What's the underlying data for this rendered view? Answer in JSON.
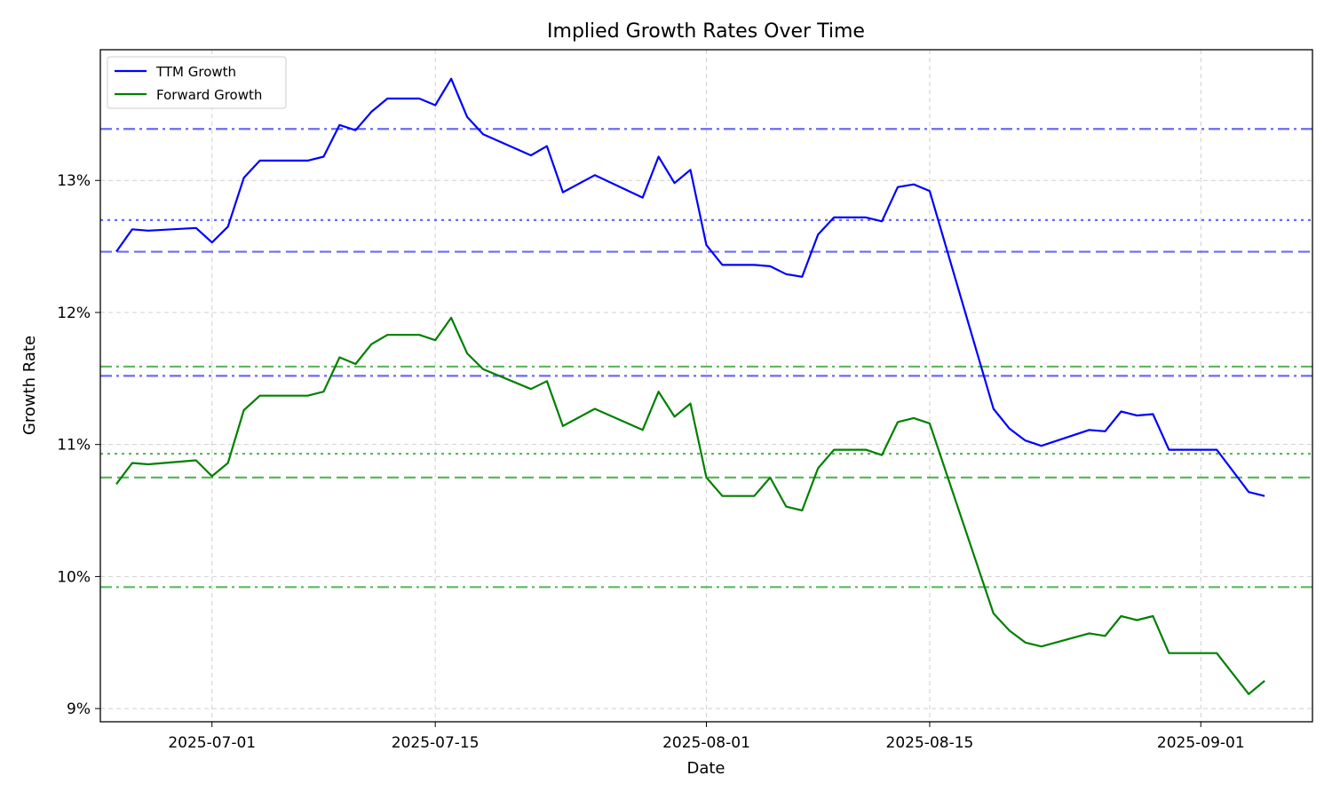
{
  "chart_data": {
    "type": "line",
    "title": "Implied Growth Rates Over Time",
    "xlabel": "Date",
    "ylabel": "Growth Rate",
    "x_range": [
      "2025-06-24",
      "2025-09-08"
    ],
    "ylim": [
      8.9,
      13.99
    ],
    "x_ticks": [
      {
        "date": "2025-07-01",
        "label": "2025-07-01"
      },
      {
        "date": "2025-07-15",
        "label": "2025-07-15"
      },
      {
        "date": "2025-08-01",
        "label": "2025-08-01"
      },
      {
        "date": "2025-08-15",
        "label": "2025-08-15"
      },
      {
        "date": "2025-09-01",
        "label": "2025-09-01"
      }
    ],
    "y_ticks": [
      {
        "value": 9,
        "label": "9%"
      },
      {
        "value": 10,
        "label": "10%"
      },
      {
        "value": 11,
        "label": "11%"
      },
      {
        "value": 12,
        "label": "12%"
      },
      {
        "value": 13,
        "label": "13%"
      }
    ],
    "grid": true,
    "legend_position": "top-left",
    "x": [
      "2025-06-25",
      "2025-06-26",
      "2025-06-27",
      "2025-06-30",
      "2025-07-01",
      "2025-07-02",
      "2025-07-03",
      "2025-07-04",
      "2025-07-07",
      "2025-07-08",
      "2025-07-09",
      "2025-07-10",
      "2025-07-11",
      "2025-07-12",
      "2025-07-14",
      "2025-07-15",
      "2025-07-16",
      "2025-07-17",
      "2025-07-18",
      "2025-07-21",
      "2025-07-22",
      "2025-07-23",
      "2025-07-25",
      "2025-07-28",
      "2025-07-29",
      "2025-07-30",
      "2025-07-31",
      "2025-08-01",
      "2025-08-02",
      "2025-08-04",
      "2025-08-05",
      "2025-08-06",
      "2025-08-07",
      "2025-08-08",
      "2025-08-09",
      "2025-08-11",
      "2025-08-12",
      "2025-08-13",
      "2025-08-14",
      "2025-08-15",
      "2025-08-19",
      "2025-08-20",
      "2025-08-21",
      "2025-08-22",
      "2025-08-25",
      "2025-08-26",
      "2025-08-27",
      "2025-08-28",
      "2025-08-29",
      "2025-08-30",
      "2025-09-02",
      "2025-09-04",
      "2025-09-05"
    ],
    "series": [
      {
        "name": "TTM Growth",
        "color": "#0000ff",
        "values": [
          12.46,
          12.63,
          12.62,
          12.64,
          12.53,
          12.65,
          13.02,
          13.15,
          13.15,
          13.18,
          13.42,
          13.38,
          13.52,
          13.62,
          13.62,
          13.57,
          13.77,
          13.48,
          13.35,
          13.19,
          13.26,
          12.91,
          13.04,
          12.87,
          13.18,
          12.98,
          13.08,
          12.51,
          12.36,
          12.36,
          12.35,
          12.29,
          12.27,
          12.59,
          12.72,
          12.72,
          12.69,
          12.95,
          12.97,
          12.92,
          11.27,
          11.12,
          11.03,
          10.99,
          11.11,
          11.1,
          11.25,
          11.22,
          11.23,
          10.96,
          10.96,
          10.64,
          10.61
        ]
      },
      {
        "name": "Forward Growth",
        "color": "#008000",
        "values": [
          10.7,
          10.86,
          10.85,
          10.88,
          10.76,
          10.86,
          11.26,
          11.37,
          11.37,
          11.4,
          11.66,
          11.61,
          11.76,
          11.83,
          11.83,
          11.79,
          11.96,
          11.69,
          11.57,
          11.42,
          11.48,
          11.14,
          11.27,
          11.11,
          11.4,
          11.21,
          11.31,
          10.75,
          10.61,
          10.61,
          10.75,
          10.53,
          10.5,
          10.82,
          10.96,
          10.96,
          10.92,
          11.17,
          11.2,
          11.16,
          9.72,
          9.59,
          9.5,
          9.47,
          9.57,
          9.55,
          9.7,
          9.67,
          9.7,
          9.42,
          9.42,
          9.11,
          9.21
        ]
      }
    ],
    "reference_lines": [
      {
        "value": 13.39,
        "color": "#5a5af5",
        "dash": "dashdot"
      },
      {
        "value": 12.7,
        "color": "#5a5af5",
        "dash": "dotted"
      },
      {
        "value": 12.46,
        "color": "#5a5af5",
        "dash": "dashed"
      },
      {
        "value": 11.52,
        "color": "#5a5af5",
        "dash": "dashdot"
      },
      {
        "value": 11.59,
        "color": "#4caf4c",
        "dash": "dashdot"
      },
      {
        "value": 10.93,
        "color": "#4caf4c",
        "dash": "dotted"
      },
      {
        "value": 10.75,
        "color": "#4caf4c",
        "dash": "dashed"
      },
      {
        "value": 9.92,
        "color": "#4caf4c",
        "dash": "dashdot"
      }
    ]
  }
}
